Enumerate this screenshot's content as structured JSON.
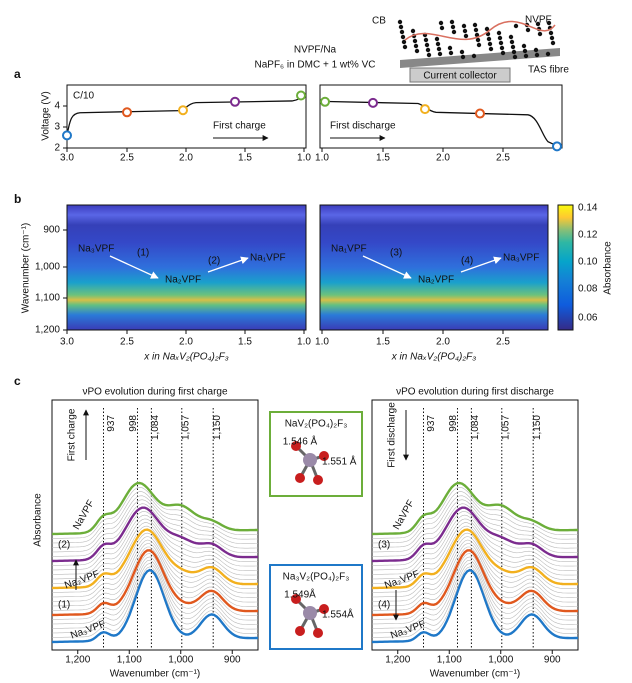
{
  "panel_a": {
    "label": "a",
    "title": [
      "NVPF/Na",
      "NaPF₆ in DMC + 1 wt% VC"
    ],
    "rate": "C/10",
    "y_label": "Voltage (V)",
    "y_ticks": [
      "2",
      "3",
      "4"
    ],
    "charge": {
      "x_ticks": [
        "3.0",
        "2.5",
        "2.0",
        "1.5",
        "1.0"
      ],
      "annotation": "First charge"
    },
    "discharge": {
      "x_ticks": [
        "1.0",
        "1.5",
        "2.0",
        "2.5"
      ],
      "annotation": "First discharge"
    },
    "schematic": {
      "labels": [
        "CB",
        "NVPF",
        "TAS fibre",
        "Current collector"
      ]
    }
  },
  "panel_b": {
    "label": "b",
    "y_label": "Wavenumber (cm⁻¹)",
    "y_ticks": [
      "900",
      "1,000",
      "1,100",
      "1,200"
    ],
    "x_label": "x in NaₓV₂(PO₄)₂F₃",
    "colorbar": {
      "label": "Absorbance",
      "ticks": [
        "0.14",
        "0.12",
        "0.10",
        "0.08",
        "0.06"
      ]
    },
    "charge": {
      "x_ticks": [
        "3.0",
        "2.5",
        "2.0",
        "1.5",
        "1.0"
      ],
      "annotations": [
        "Na₃VPF",
        "(1)",
        "Na₂VPF",
        "(2)",
        "Na₁VPF"
      ]
    },
    "discharge": {
      "x_ticks": [
        "1.0",
        "1.5",
        "2.0",
        "2.5"
      ],
      "annotations": [
        "Na₁VPF",
        "(3)",
        "Na₂VPF",
        "(4)",
        "Na₃VPF"
      ]
    }
  },
  "panel_c": {
    "label": "c",
    "y_label": "Absorbance",
    "x_label": "Wavenumber (cm⁻¹)",
    "x_ticks": [
      "1,200",
      "1,100",
      "1,000",
      "900"
    ],
    "peak_labels": [
      "937",
      "998",
      "1,084",
      "1,057",
      "1,150"
    ],
    "charge": {
      "title": "νPO evolution during first charge",
      "direction": "First charge",
      "states": [
        "NaVPF",
        "(2)",
        "Na₂VPF",
        "(1)",
        "Na₃VPF"
      ]
    },
    "discharge": {
      "title": "νPO evolution during first discharge",
      "direction": "First discharge",
      "states": [
        "NaVPF",
        "(3)",
        "Na₂VPF",
        "(4)",
        "Na₃VPF"
      ]
    },
    "structures": [
      {
        "formula": "NaV₂(PO₄)₂F₃",
        "bonds": [
          "1.546 Å",
          "1.551 Å"
        ]
      },
      {
        "formula": "Na₃V₂(PO₄)₂F₃",
        "bonds": [
          "1.549Å",
          "1.554Å"
        ]
      }
    ]
  }
}
